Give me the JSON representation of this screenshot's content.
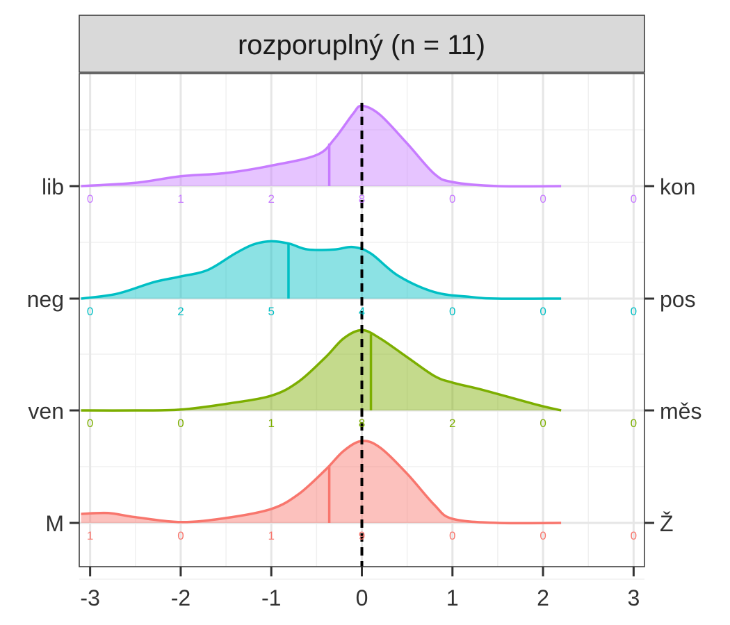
{
  "chart_data": {
    "type": "ridgeline",
    "title": "rozporuplný (n = 11)",
    "xlabel": "",
    "ylabel": "",
    "xlim": [
      -3.12,
      3.12
    ],
    "x_ticks": [
      -3,
      -2,
      -1,
      0,
      1,
      2,
      3
    ],
    "x_tick_labels": [
      "-3",
      "-2",
      "-1",
      "0",
      "1",
      "2",
      "3"
    ],
    "reference_line_x": 0,
    "grid": true,
    "count_x": [
      -3,
      -2,
      -1,
      0,
      1,
      2,
      3
    ],
    "series": [
      {
        "left_label": "lib",
        "right_label": "kon",
        "color": "#C77CFF",
        "mean": -0.36,
        "counts": [
          "0",
          "1",
          "2",
          "8",
          "0",
          "0",
          "0"
        ],
        "density": [
          [
            -3.1,
            0.0
          ],
          [
            -2.5,
            0.04
          ],
          [
            -2.0,
            0.12
          ],
          [
            -1.5,
            0.16
          ],
          [
            -1.0,
            0.25
          ],
          [
            -0.5,
            0.38
          ],
          [
            -0.3,
            0.58
          ],
          [
            -0.1,
            0.88
          ],
          [
            0.0,
            0.98
          ],
          [
            0.2,
            0.87
          ],
          [
            0.5,
            0.52
          ],
          [
            0.8,
            0.15
          ],
          [
            1.0,
            0.05
          ],
          [
            1.5,
            0.0
          ],
          [
            2.2,
            0.0
          ]
        ]
      },
      {
        "left_label": "neg",
        "right_label": "pos",
        "color": "#00BFC4",
        "mean": -0.81,
        "counts": [
          "0",
          "2",
          "5",
          "4",
          "0",
          "0",
          "0"
        ],
        "density": [
          [
            -3.1,
            0.0
          ],
          [
            -2.7,
            0.06
          ],
          [
            -2.3,
            0.2
          ],
          [
            -2.0,
            0.27
          ],
          [
            -1.7,
            0.35
          ],
          [
            -1.4,
            0.55
          ],
          [
            -1.2,
            0.66
          ],
          [
            -1.0,
            0.7
          ],
          [
            -0.8,
            0.67
          ],
          [
            -0.6,
            0.6
          ],
          [
            -0.3,
            0.6
          ],
          [
            -0.1,
            0.63
          ],
          [
            0.1,
            0.55
          ],
          [
            0.4,
            0.28
          ],
          [
            0.8,
            0.08
          ],
          [
            1.2,
            0.02
          ],
          [
            1.5,
            0.0
          ],
          [
            2.2,
            0.0
          ]
        ]
      },
      {
        "left_label": "ven",
        "right_label": "měs",
        "color": "#7CAE00",
        "mean": 0.1,
        "counts": [
          "0",
          "0",
          "1",
          "8",
          "2",
          "0",
          "0"
        ],
        "density": [
          [
            -3.1,
            0.0
          ],
          [
            -2.5,
            0.0
          ],
          [
            -2.0,
            0.01
          ],
          [
            -1.5,
            0.08
          ],
          [
            -1.0,
            0.18
          ],
          [
            -0.7,
            0.35
          ],
          [
            -0.4,
            0.65
          ],
          [
            -0.2,
            0.88
          ],
          [
            0.0,
            0.98
          ],
          [
            0.2,
            0.88
          ],
          [
            0.5,
            0.65
          ],
          [
            0.8,
            0.42
          ],
          [
            1.0,
            0.34
          ],
          [
            1.3,
            0.26
          ],
          [
            1.6,
            0.17
          ],
          [
            2.0,
            0.05
          ],
          [
            2.2,
            0.0
          ]
        ]
      },
      {
        "left_label": "M",
        "right_label": "Ž",
        "color": "#F8766D",
        "mean": -0.36,
        "counts": [
          "1",
          "0",
          "1",
          "9",
          "0",
          "0",
          "0"
        ],
        "density": [
          [
            -3.1,
            0.11
          ],
          [
            -2.8,
            0.12
          ],
          [
            -2.5,
            0.07
          ],
          [
            -2.0,
            0.01
          ],
          [
            -1.5,
            0.06
          ],
          [
            -1.0,
            0.17
          ],
          [
            -0.7,
            0.35
          ],
          [
            -0.4,
            0.65
          ],
          [
            -0.2,
            0.88
          ],
          [
            0.0,
            1.0
          ],
          [
            0.2,
            0.92
          ],
          [
            0.5,
            0.6
          ],
          [
            0.8,
            0.22
          ],
          [
            1.0,
            0.05
          ],
          [
            1.5,
            0.0
          ],
          [
            2.2,
            0.0
          ]
        ]
      }
    ]
  }
}
